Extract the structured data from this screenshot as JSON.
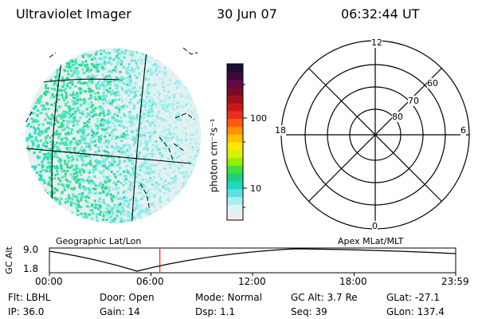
{
  "header": {
    "title": "Ultraviolet Imager",
    "date": "30 Jun 07",
    "time": "06:32:44 UT"
  },
  "colorbar": {
    "unit_label": "photon cm⁻²s⁻¹",
    "tick_labels": [
      "100",
      "10"
    ],
    "colors": [
      "#1a1038",
      "#3a0a3a",
      "#5c0a4a",
      "#7a0a2a",
      "#a0101a",
      "#c81818",
      "#e83020",
      "#ff5a10",
      "#ff9000",
      "#ffc000",
      "#ffe800",
      "#d8f000",
      "#90f000",
      "#40e040",
      "#20d080",
      "#20d8c0",
      "#60e0e0",
      "#a8eeee",
      "#d8f4f4",
      "#eeeeee"
    ]
  },
  "polar_plot": {
    "mlt_labels": {
      "top": "12",
      "right": "6",
      "bottom": "0",
      "left": "18"
    },
    "lat_labels": [
      "60",
      "70",
      "80"
    ]
  },
  "timeline": {
    "left_title": "Geographic Lat/Lon",
    "right_title": "Apex MLat/MLT",
    "y_axis_label": "GC Alt",
    "y_ticks": [
      "9.0",
      "1.8"
    ],
    "x_ticks": [
      "00:00",
      "06:00",
      "12:00",
      "18:00",
      "23:59"
    ],
    "current_fraction": 0.272
  },
  "info": {
    "flt": "Flt: LBHL",
    "door": "Door: Open",
    "mode": "Mode: Normal",
    "gcalt": "GC Alt: 3.7 Re",
    "glat": "GLat: -27.1",
    "ip": "IP: 36.0",
    "gain": "Gain: 14",
    "dsp": "Dsp:    1.1",
    "seq": "Seq: 39",
    "glon": "GLon: 137.4"
  }
}
